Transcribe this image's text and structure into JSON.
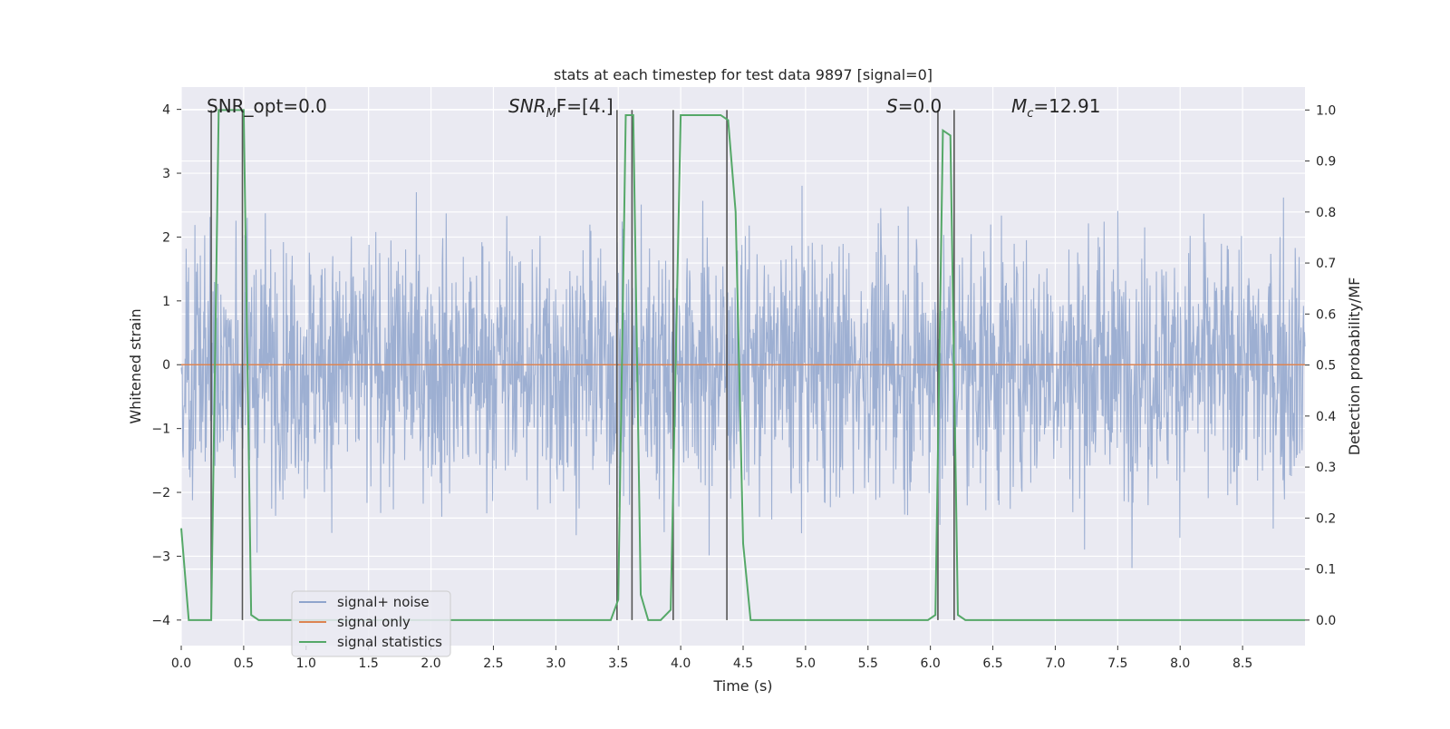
{
  "chart_data": {
    "type": "line",
    "title": "stats at each timestep for test data 9897 [signal=0]",
    "xlabel": "Time (s)",
    "ylabel": "Whitened strain",
    "ylabel_right": "Detection probability/MF",
    "xlim": [
      0,
      9.0
    ],
    "ylim": [
      -4.4,
      4.35
    ],
    "ylim_right": [
      -0.05,
      1.045
    ],
    "x_ticks": [
      "0.0",
      "0.5",
      "1.0",
      "1.5",
      "2.0",
      "2.5",
      "3.0",
      "3.5",
      "4.0",
      "4.5",
      "5.0",
      "5.5",
      "6.0",
      "6.5",
      "7.0",
      "7.5",
      "8.0",
      "8.5"
    ],
    "y_ticks": [
      "4",
      "3",
      "2",
      "1",
      "0",
      "−1",
      "−2",
      "−3",
      "−4"
    ],
    "y_ticks_right": [
      "1.0",
      "0.9",
      "0.8",
      "0.7",
      "0.6",
      "0.5",
      "0.4",
      "0.3",
      "0.2",
      "0.1",
      "0.0"
    ],
    "annotations": {
      "snr_opt": "SNR_opt=0.0",
      "snr_mf_base": "SNR",
      "snr_mf_sub": "M",
      "snr_mf_rest": "F=[4.]",
      "s_var": "S",
      "s_rest": "=0.0",
      "mc_base": "M",
      "mc_sub": "c",
      "mc_rest": "=12.91"
    },
    "legend": {
      "placement": "lower-left",
      "entries": [
        "signal+ noise",
        "signal only",
        "signal statistics"
      ]
    },
    "grid": true,
    "colors": {
      "noise": "#8fa5cc",
      "signal": "#dd8452",
      "stats": "#55a868",
      "vlines": "#555555",
      "background": "#eaeaf2"
    },
    "series": [
      {
        "name": "signal+ noise",
        "kind": "noise",
        "amplitude_sd": 1.0,
        "approx_min": -3.5,
        "approx_max": 3.6
      },
      {
        "name": "signal only",
        "kind": "constant",
        "value": 0.0
      },
      {
        "name": "signal statistics",
        "axis": "right",
        "x": [
          0.0,
          0.06,
          0.24,
          0.3,
          0.5,
          0.56,
          0.62,
          3.44,
          3.5,
          3.56,
          3.62,
          3.68,
          3.74,
          3.84,
          3.92,
          4.0,
          4.32,
          4.38,
          4.44,
          4.5,
          4.56,
          4.62,
          5.98,
          6.04,
          6.1,
          6.16,
          6.22,
          6.28,
          9.0
        ],
        "y": [
          0.18,
          0.0,
          0.0,
          1.0,
          1.0,
          0.01,
          0.0,
          0.0,
          0.04,
          0.99,
          0.99,
          0.05,
          0.0,
          0.0,
          0.02,
          0.99,
          0.99,
          0.98,
          0.8,
          0.15,
          0.0,
          0.0,
          0.0,
          0.01,
          0.96,
          0.95,
          0.01,
          0.0,
          0.0
        ]
      }
    ],
    "vertical_lines_x": [
      0.24,
      0.49,
      3.49,
      3.61,
      3.94,
      4.37,
      6.06,
      6.19
    ]
  }
}
